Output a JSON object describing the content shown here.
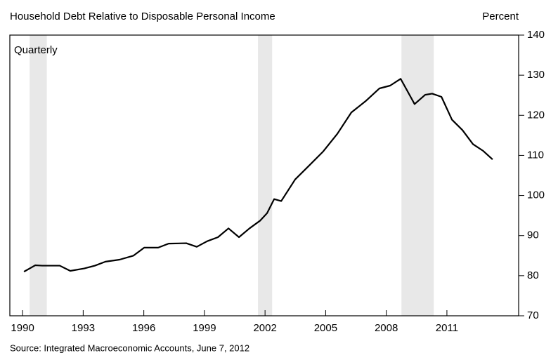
{
  "chart_data": {
    "type": "line",
    "title": "Household Debt Relative to Disposable Personal Income",
    "y_axis_label": "Percent",
    "subtitle": "Quarterly",
    "source": "Source: Integrated Macroeconomic Accounts, June 7, 2012",
    "x": [
      1990.07,
      1990.63,
      1990.97,
      1991.84,
      1992.36,
      1993.05,
      1993.58,
      1994.1,
      1994.8,
      1995.49,
      1996.02,
      1996.71,
      1997.23,
      1998.1,
      1998.62,
      1999.14,
      1999.67,
      2000.19,
      2000.71,
      2001.23,
      2001.75,
      2002.1,
      2002.45,
      2002.8,
      2003.49,
      2004.19,
      2004.88,
      2005.58,
      2006.27,
      2006.97,
      2007.66,
      2008.19,
      2008.71,
      2009.05,
      2009.4,
      2009.92,
      2010.27,
      2010.73,
      2011.25,
      2011.77,
      2012.29,
      2012.8,
      2013.26
    ],
    "series": [
      {
        "name": "Household Debt Relative to Disposable Personal Income",
        "color": "#000000",
        "values": [
          81,
          82.6,
          82.5,
          82.5,
          81.2,
          81.8,
          82.5,
          83.5,
          84,
          85,
          87,
          87,
          88,
          88.1,
          87.2,
          88.6,
          89.6,
          91.8,
          89.6,
          91.8,
          93.7,
          95.6,
          99.1,
          98.6,
          104,
          107.5,
          111,
          115.4,
          120.7,
          123.5,
          126.7,
          127.4,
          129.1,
          126,
          122.8,
          125.1,
          125.4,
          124.6,
          118.9,
          116.3,
          112.8,
          111.1,
          109
        ]
      }
    ],
    "recessions": [
      [
        1990.35,
        1991.2
      ],
      [
        2001.65,
        2002.35
      ],
      [
        2008.75,
        2010.35
      ]
    ],
    "recession_color": "#e8e8e8",
    "xlim": [
      1989.37,
      2014.55
    ],
    "xticks": [
      1990,
      1993,
      1996,
      1999,
      2002,
      2005,
      2008,
      2011
    ],
    "ylim": [
      70,
      140
    ],
    "yticks": [
      70,
      80,
      90,
      100,
      110,
      120,
      130,
      140
    ],
    "grid": false
  }
}
